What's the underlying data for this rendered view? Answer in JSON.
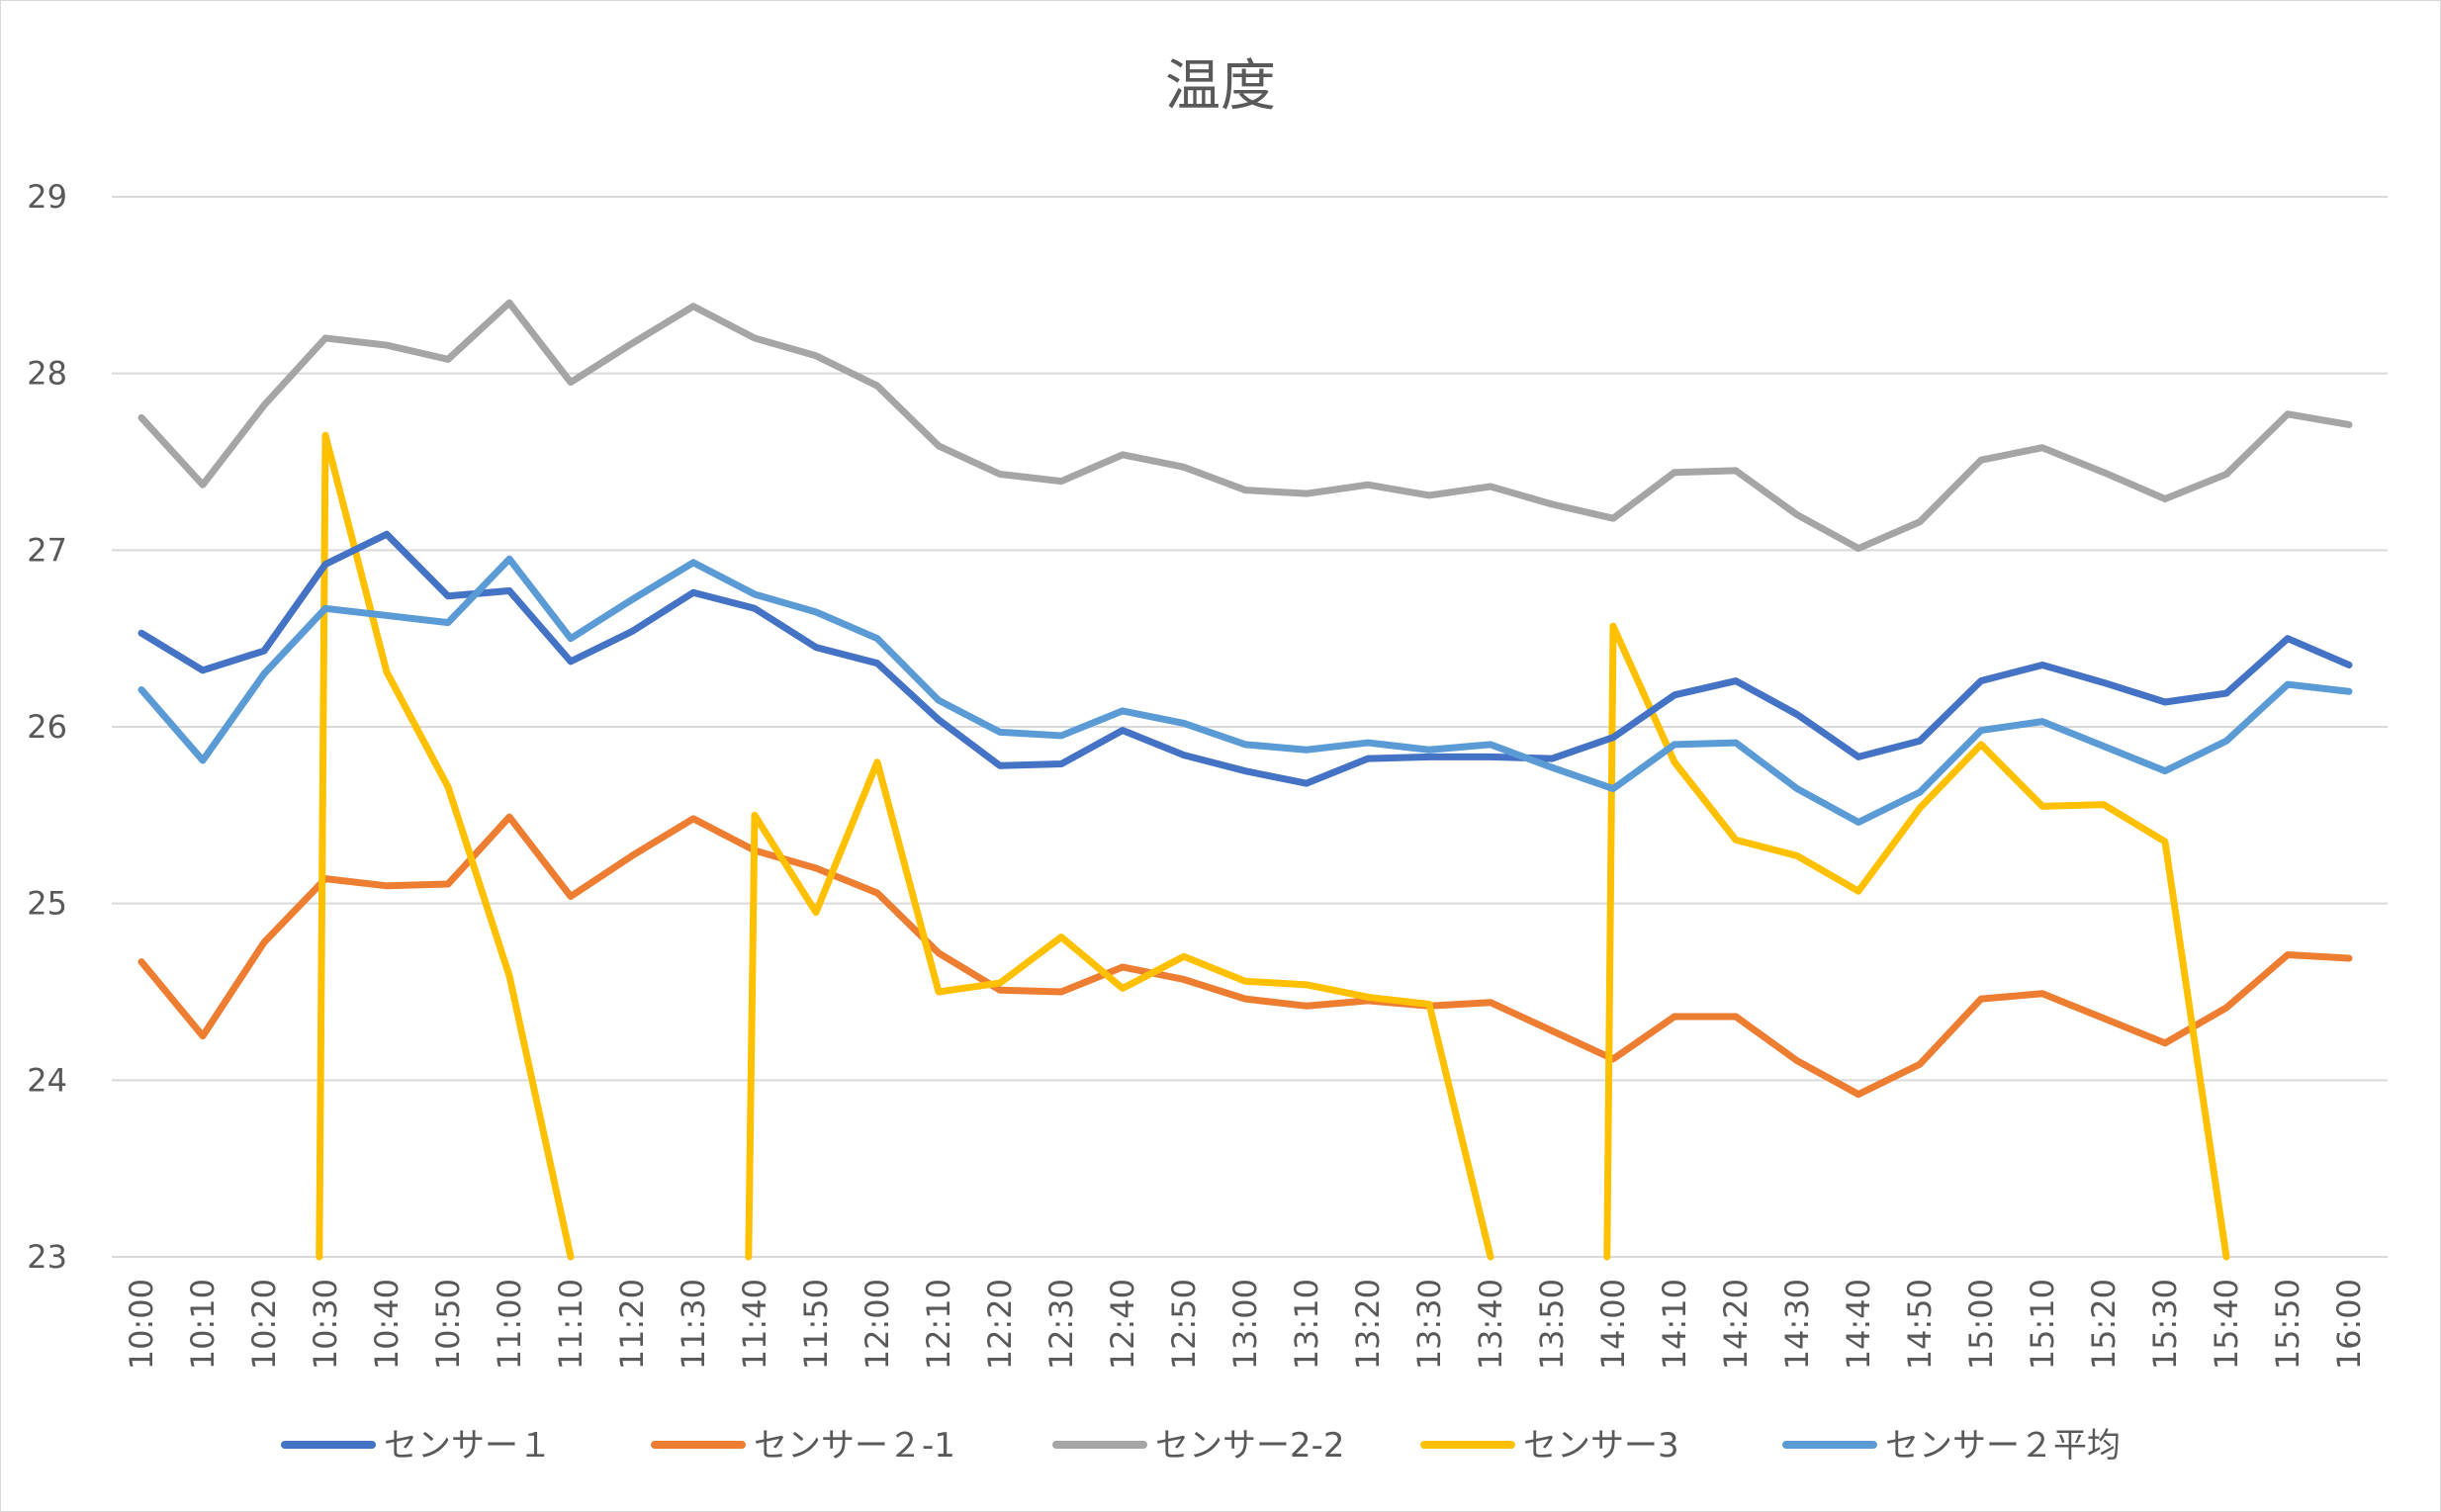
{
  "chart_data": {
    "type": "line",
    "title": "温度",
    "xlabel": "",
    "ylabel": "",
    "ylim": [
      23,
      29
    ],
    "yticks": [
      "23",
      "24",
      "25",
      "26",
      "27",
      "28",
      "29"
    ],
    "grid": true,
    "legend_position": "bottom",
    "categories": [
      "10:00",
      "10:10",
      "10:20",
      "10:30",
      "10:40",
      "10:50",
      "11:00",
      "11:10",
      "11:20",
      "11:30",
      "11:40",
      "11:50",
      "12:00",
      "12:10",
      "12:20",
      "12:30",
      "12:40",
      "12:50",
      "13:00",
      "13:10",
      "13:20",
      "13:30",
      "13:40",
      "13:50",
      "14:00",
      "14:10",
      "14:20",
      "14:30",
      "14:40",
      "14:50",
      "15:00",
      "15:10",
      "15:20",
      "15:30",
      "15:40",
      "15:50",
      "16:00"
    ],
    "series": [
      {
        "name": "センサー１",
        "color": "#4472C4",
        "values": [
          26.53,
          26.32,
          26.43,
          26.92,
          27.09,
          26.74,
          26.77,
          26.37,
          26.54,
          26.76,
          26.67,
          26.45,
          26.36,
          26.04,
          25.78,
          25.79,
          25.98,
          25.84,
          25.75,
          25.68,
          25.82,
          25.83,
          25.83,
          25.82,
          25.94,
          26.18,
          26.26,
          26.07,
          25.83,
          25.92,
          26.26,
          26.35,
          26.25,
          26.14,
          26.19,
          26.5,
          26.35
        ]
      },
      {
        "name": "センサー２-1",
        "color": "#ED7D31",
        "values": [
          24.67,
          24.25,
          24.78,
          25.14,
          25.1,
          25.11,
          25.49,
          25.04,
          25.27,
          25.48,
          25.3,
          25.2,
          25.06,
          24.72,
          24.51,
          24.5,
          24.64,
          24.57,
          24.46,
          24.42,
          24.45,
          24.42,
          24.44,
          24.28,
          24.12,
          24.36,
          24.36,
          24.11,
          23.92,
          24.09,
          24.46,
          24.49,
          24.35,
          24.21,
          24.41,
          24.71,
          24.69
        ]
      },
      {
        "name": "センサー2-2",
        "color": "#A5A5A5",
        "values": [
          27.75,
          27.37,
          27.82,
          28.2,
          28.16,
          28.08,
          28.4,
          27.95,
          28.17,
          28.38,
          28.2,
          28.1,
          27.93,
          27.59,
          27.43,
          27.39,
          27.54,
          27.47,
          27.34,
          27.32,
          27.37,
          27.31,
          27.36,
          27.26,
          27.18,
          27.44,
          27.45,
          27.2,
          27.01,
          27.16,
          27.51,
          27.58,
          27.44,
          27.29,
          27.43,
          27.77,
          27.71
        ]
      },
      {
        "name": "センサー3",
        "color": "#FFC000",
        "values": [
          null,
          null,
          null,
          27.65,
          26.31,
          25.66,
          24.59,
          null,
          null,
          null,
          25.5,
          24.95,
          25.8,
          24.5,
          24.55,
          24.81,
          24.52,
          24.7,
          24.56,
          24.54,
          24.47,
          24.43,
          null,
          null,
          26.57,
          25.8,
          25.36,
          25.27,
          25.07,
          25.54,
          25.9,
          25.55,
          25.56,
          25.35,
          null,
          null,
          null
        ]
      },
      {
        "name": "センサー２平均",
        "color": "#5B9BD5",
        "values": [
          26.21,
          25.81,
          26.3,
          26.67,
          26.63,
          26.59,
          26.95,
          26.5,
          26.72,
          26.93,
          26.75,
          26.65,
          26.5,
          26.15,
          25.97,
          25.95,
          26.09,
          26.02,
          25.9,
          25.87,
          25.91,
          25.87,
          25.9,
          25.77,
          25.65,
          25.9,
          25.91,
          25.65,
          25.46,
          25.63,
          25.98,
          26.03,
          25.89,
          25.75,
          25.92,
          26.24,
          26.2
        ]
      }
    ]
  }
}
